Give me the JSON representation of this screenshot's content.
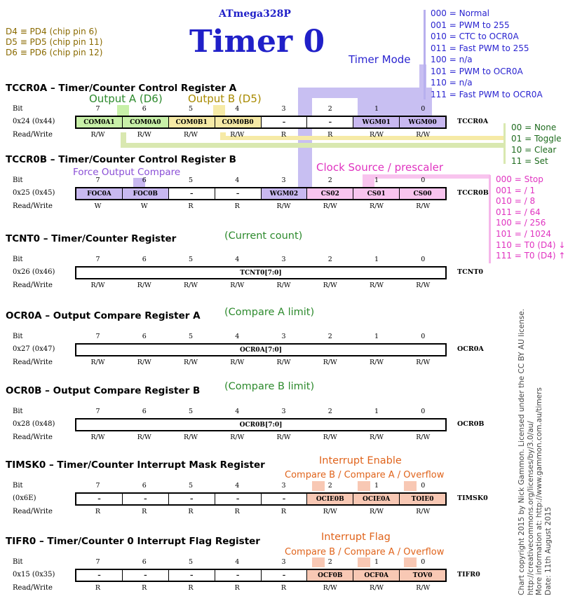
{
  "pin_notes": [
    "D4 ≡ PD4 (chip pin 6)",
    "D5 ≡ PD5 (chip pin 11)",
    "D6 ≡ PD6 (chip pin 12)"
  ],
  "chip": "ATmega328P",
  "title": "Timer 0",
  "timer_mode": {
    "title": "Timer Mode",
    "items": [
      "000 = Normal",
      "001 = PWM to 255",
      "010 = CTC to OCR0A",
      "011 = Fast PWM to 255",
      "100 = n/a",
      "101 = PWM to OCR0A",
      "110 = n/a",
      "111 = Fast PWM to OCR0A"
    ]
  },
  "output_modes": [
    "00 = None",
    "01 = Toggle",
    "10 = Clear",
    "11 = Set"
  ],
  "clock_source": {
    "title": "Clock Source / prescaler",
    "items": [
      "000 = Stop",
      "001 = / 1",
      "010 = / 8",
      "011 = / 64",
      "100 = / 256",
      "101 = / 1024",
      "110 = T0 (D4) ↓",
      "111 = T0 (D4) ↑"
    ]
  },
  "labels": {
    "bit": "Bit",
    "read_write": "Read/Write",
    "output_a": "Output A (D6)",
    "output_b": "Output B (D5)",
    "force_output": "Force Output Compare",
    "current_count": "(Current count)",
    "compare_a": "(Compare A limit)",
    "compare_b": "(Compare B limit)",
    "interrupt_enable": "Interrupt Enable",
    "interrupt_flag": "Interrupt Flag",
    "int_sub": "Compare B / Compare A / Overflow"
  },
  "bit_numbers": [
    "7",
    "6",
    "5",
    "4",
    "3",
    "2",
    "1",
    "0"
  ],
  "registers": [
    {
      "title": "TCCR0A – Timer/Counter Control Register A",
      "address": "0x24 (0x44)",
      "name": "TCCR0A",
      "bits": [
        "COM0A1",
        "COM0A0",
        "COM0B1",
        "COM0B0",
        "–",
        "–",
        "WGM01",
        "WGM00"
      ],
      "bit_colors": [
        "#c8f0a8",
        "#c8f0a8",
        "#f6eaa6",
        "#f6eaa6",
        "#ffffff",
        "#ffffff",
        "#c8b8f0",
        "#c8b8f0"
      ],
      "rw": [
        "R/W",
        "R/W",
        "R/W",
        "R/W",
        "R",
        "R",
        "R/W",
        "R/W"
      ]
    },
    {
      "title": "TCCR0B – Timer/Counter Control Register B",
      "address": "0x25 (0x45)",
      "name": "TCCR0B",
      "bits": [
        "FOC0A",
        "FOC0B",
        "–",
        "–",
        "WGM02",
        "CS02",
        "CS01",
        "CS00"
      ],
      "bit_colors": [
        "#c8b8f0",
        "#c8b8f0",
        "#ffffff",
        "#ffffff",
        "#c8b8f0",
        "#f8c4ee",
        "#f8c4ee",
        "#f8c4ee"
      ],
      "rw": [
        "W",
        "W",
        "R",
        "R",
        "R/W",
        "R/W",
        "R/W",
        "R/W"
      ]
    },
    {
      "title": "TCNT0 – Timer/Counter Register",
      "address": "0x26 (0x46)",
      "name": "TCNT0",
      "field": "TCNT0[7:0]",
      "rw": [
        "R/W",
        "R/W",
        "R/W",
        "R/W",
        "R/W",
        "R/W",
        "R/W",
        "R/W"
      ]
    },
    {
      "title": "OCR0A – Output Compare Register A",
      "address": "0x27 (0x47)",
      "name": "OCR0A",
      "field": "OCR0A[7:0]",
      "rw": [
        "R/W",
        "R/W",
        "R/W",
        "R/W",
        "R/W",
        "R/W",
        "R/W",
        "R/W"
      ]
    },
    {
      "title": "OCR0B – Output Compare Register B",
      "address": "0x28 (0x48)",
      "name": "OCR0B",
      "field": "OCR0B[7:0]",
      "rw": [
        "R/W",
        "R/W",
        "R/W",
        "R/W",
        "R/W",
        "R/W",
        "R/W",
        "R/W"
      ]
    },
    {
      "title": "TIMSK0 – Timer/Counter Interrupt Mask Register",
      "address": "(0x6E)",
      "name": "TIMSK0",
      "bits": [
        "–",
        "–",
        "–",
        "–",
        "–",
        "OCIE0B",
        "OCIE0A",
        "TOIE0"
      ],
      "bit_colors": [
        "#ffffff",
        "#ffffff",
        "#ffffff",
        "#ffffff",
        "#ffffff",
        "#f8c8b4",
        "#f8c8b4",
        "#f8c8b4"
      ],
      "rw": [
        "R",
        "R",
        "R",
        "R",
        "R",
        "R/W",
        "R/W",
        "R/W"
      ]
    },
    {
      "title": "TIFR0 – Timer/Counter 0 Interrupt Flag Register",
      "address": "0x15 (0x35)",
      "name": "TIFR0",
      "bits": [
        "–",
        "–",
        "–",
        "–",
        "–",
        "OCF0B",
        "OCF0A",
        "TOV0"
      ],
      "bit_colors": [
        "#ffffff",
        "#ffffff",
        "#ffffff",
        "#ffffff",
        "#ffffff",
        "#f8c8b4",
        "#f8c8b4",
        "#f8c8b4"
      ],
      "rw": [
        "R",
        "R",
        "R",
        "R",
        "R",
        "R/W",
        "R/W",
        "R/W"
      ]
    }
  ],
  "credit": [
    "Chart copyright 2015 by Nick Gammon. Licensed under the CC BY AU license.",
    "http://creativecommons.org/licenses/by/3.0/au/",
    "More information at: http://www.gammon.com.au/timers",
    "Date: 11th August 2015"
  ],
  "colors": {
    "mode": "#2a24d0",
    "mode_band": "#b8b0ee",
    "output_a": "#2d8a2d",
    "output_b": "#a88a00",
    "clock": "#e033c0",
    "interrupt": "#e0641c"
  }
}
